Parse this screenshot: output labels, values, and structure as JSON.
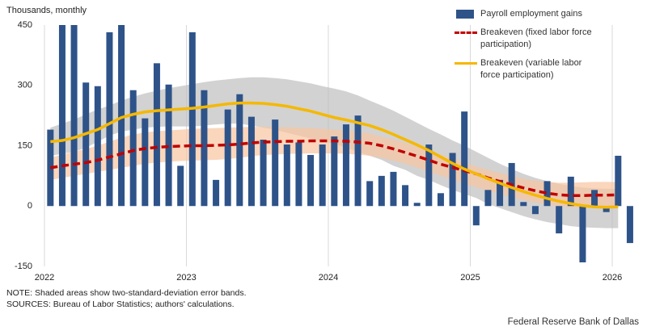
{
  "chart_data": {
    "type": "bar",
    "y_label": "Thousands, monthly",
    "categories": [
      "2022",
      null,
      null,
      null,
      null,
      null,
      null,
      null,
      null,
      null,
      null,
      null,
      "2023",
      null,
      null,
      null,
      null,
      null,
      null,
      null,
      null,
      null,
      null,
      null,
      "2024",
      null,
      null,
      null,
      null,
      null,
      null,
      null,
      null,
      null,
      null,
      null,
      "2025",
      null,
      null,
      null,
      null,
      null,
      null,
      null,
      null,
      null,
      null,
      null,
      "2026",
      null
    ],
    "ylim": [
      -150,
      450
    ],
    "yticks": [
      -150,
      0,
      150,
      300,
      450
    ],
    "x_grid": true,
    "legend": "top-right",
    "series": [
      {
        "name": "Payroll employment gains",
        "type": "bar",
        "color": "#2e5389",
        "values": [
          190,
          450,
          450,
          307,
          298,
          432,
          450,
          288,
          218,
          355,
          302,
          100,
          432,
          288,
          65,
          240,
          278,
          222,
          165,
          215,
          153,
          158,
          127,
          153,
          173,
          203,
          225,
          62,
          75,
          85,
          52,
          8,
          153,
          32,
          132,
          235,
          -48,
          40,
          65,
          107,
          10,
          -20,
          62,
          -68,
          73,
          -140,
          40,
          -15,
          125,
          -92
        ]
      },
      {
        "name": "Breakeven (fixed labor force participation)",
        "type": "line",
        "dashed": true,
        "color": "#c00000",
        "values": [
          95,
          100,
          104,
          108,
          114,
          122,
          130,
          138,
          143,
          146,
          148,
          149,
          150,
          150,
          151,
          152,
          154,
          157,
          159,
          160,
          161,
          161,
          162,
          162,
          162,
          161,
          159,
          156,
          150,
          142,
          133,
          124,
          114,
          104,
          96,
          88,
          80,
          70,
          61,
          53,
          45,
          38,
          32,
          28,
          26,
          26,
          27,
          27,
          28,
          null
        ]
      },
      {
        "name": "Breakeven (variable labor force participation)",
        "type": "line",
        "dashed": false,
        "color": "#f5b800",
        "values": [
          160,
          163,
          170,
          180,
          190,
          205,
          220,
          228,
          234,
          237,
          239,
          241,
          243,
          246,
          250,
          254,
          256,
          256,
          255,
          252,
          248,
          242,
          236,
          228,
          220,
          214,
          207,
          200,
          190,
          178,
          165,
          152,
          138,
          122,
          106,
          92,
          80,
          68,
          57,
          46,
          36,
          27,
          19,
          12,
          6,
          1,
          -2,
          -3,
          -2,
          null
        ]
      }
    ],
    "bands": [
      {
        "color": "#bfbfbf",
        "upper": [
          195,
          205,
          215,
          228,
          240,
          250,
          262,
          272,
          280,
          287,
          293,
          298,
          303,
          308,
          312,
          315,
          318,
          320,
          320,
          318,
          315,
          310,
          305,
          298,
          292,
          285,
          275,
          262,
          250,
          237,
          222,
          207,
          192,
          178,
          163,
          150,
          135,
          120,
          105,
          92,
          80,
          70,
          62,
          55,
          50,
          46,
          44,
          43,
          43,
          null
        ],
        "lower": [
          125,
          130,
          135,
          145,
          160,
          175,
          185,
          190,
          195,
          197,
          198,
          198,
          198,
          200,
          203,
          205,
          205,
          200,
          195,
          190,
          182,
          175,
          168,
          160,
          155,
          145,
          135,
          125,
          115,
          100,
          90,
          75,
          65,
          52,
          40,
          30,
          20,
          5,
          -5,
          -15,
          -25,
          -33,
          -40,
          -45,
          -50,
          -53,
          -54,
          -55,
          -55,
          null
        ]
      },
      {
        "color": "#f8c4a0",
        "upper": [
          120,
          128,
          135,
          142,
          150,
          160,
          170,
          178,
          183,
          186,
          188,
          190,
          192,
          193,
          194,
          195,
          196,
          197,
          197,
          196,
          196,
          195,
          194,
          192,
          190,
          188,
          185,
          180,
          172,
          165,
          157,
          148,
          138,
          128,
          118,
          108,
          98,
          90,
          82,
          75,
          68,
          63,
          60,
          58,
          58,
          59,
          60,
          60,
          60,
          null
        ],
        "lower": [
          65,
          70,
          75,
          80,
          85,
          90,
          95,
          100,
          105,
          108,
          110,
          112,
          113,
          114,
          115,
          117,
          120,
          124,
          127,
          128,
          130,
          130,
          131,
          131,
          131,
          130,
          128,
          125,
          120,
          113,
          105,
          96,
          86,
          76,
          66,
          56,
          47,
          38,
          30,
          22,
          15,
          9,
          4,
          0,
          -3,
          -4,
          -5,
          -5,
          -5,
          null
        ]
      }
    ],
    "notes": [
      "NOTE: Shaded areas show two-standard-deviation error bands.",
      "SOURCES: Bureau of Labor Statistics; authors' calculations."
    ],
    "credit": "Federal Reserve Bank of Dallas"
  }
}
